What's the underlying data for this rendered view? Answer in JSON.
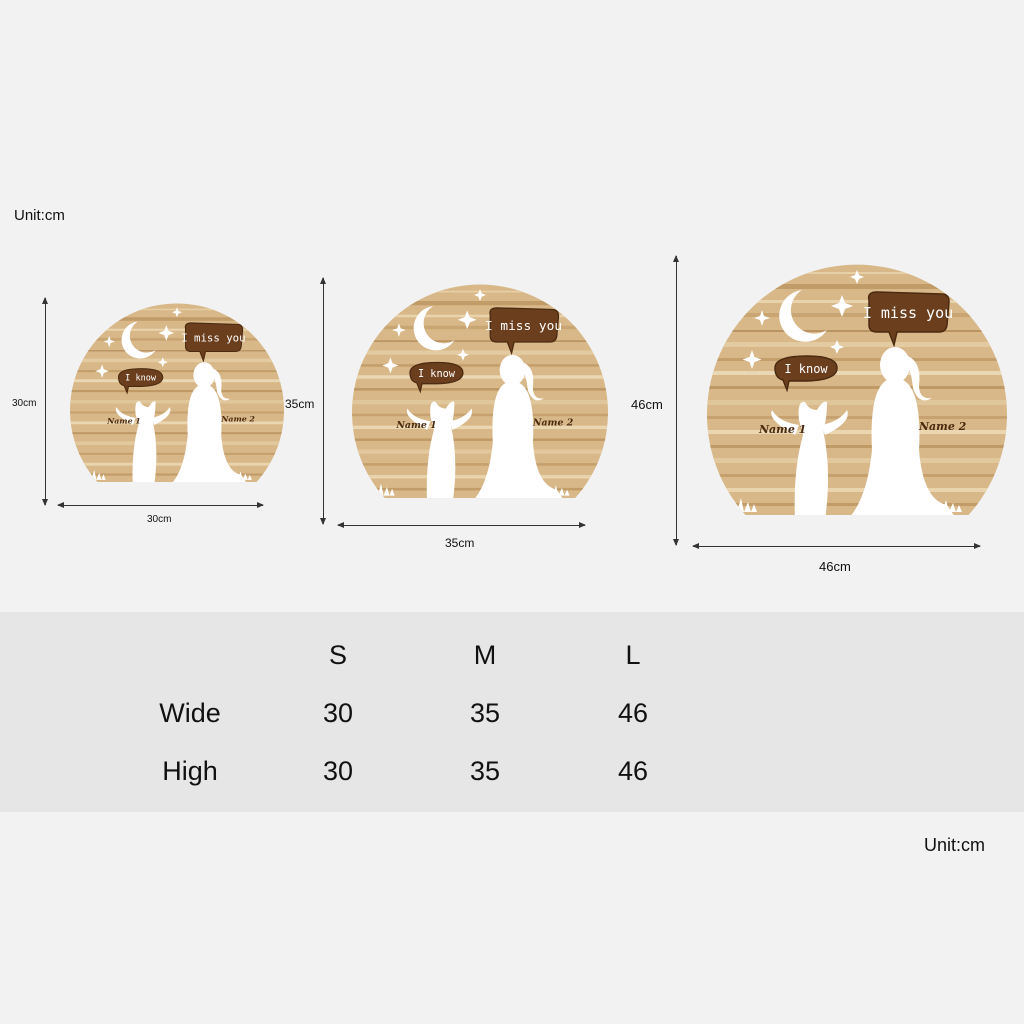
{
  "unit_top": "Unit:cm",
  "unit_bottom": "Unit:cm",
  "plaque_text": {
    "bubble_right": "I miss you",
    "bubble_left": "I know",
    "name_left": "Name 1",
    "name_right": "Name 2"
  },
  "products": [
    {
      "size": "S",
      "width_label": "30cm",
      "height_label": "30cm"
    },
    {
      "size": "M",
      "width_label": "35cm",
      "height_label": "35cm"
    },
    {
      "size": "L",
      "width_label": "46cm",
      "height_label": "46cm"
    }
  ],
  "size_table": {
    "columns": [
      "S",
      "M",
      "L"
    ],
    "rows": [
      {
        "label": "Wide",
        "values": [
          "30",
          "35",
          "46"
        ]
      },
      {
        "label": "High",
        "values": [
          "30",
          "35",
          "46"
        ]
      }
    ]
  },
  "colors": {
    "background": "#f2f2f2",
    "band": "#e6e6e6",
    "wood": "#d8b888",
    "bubble": "#6b3f1d"
  }
}
